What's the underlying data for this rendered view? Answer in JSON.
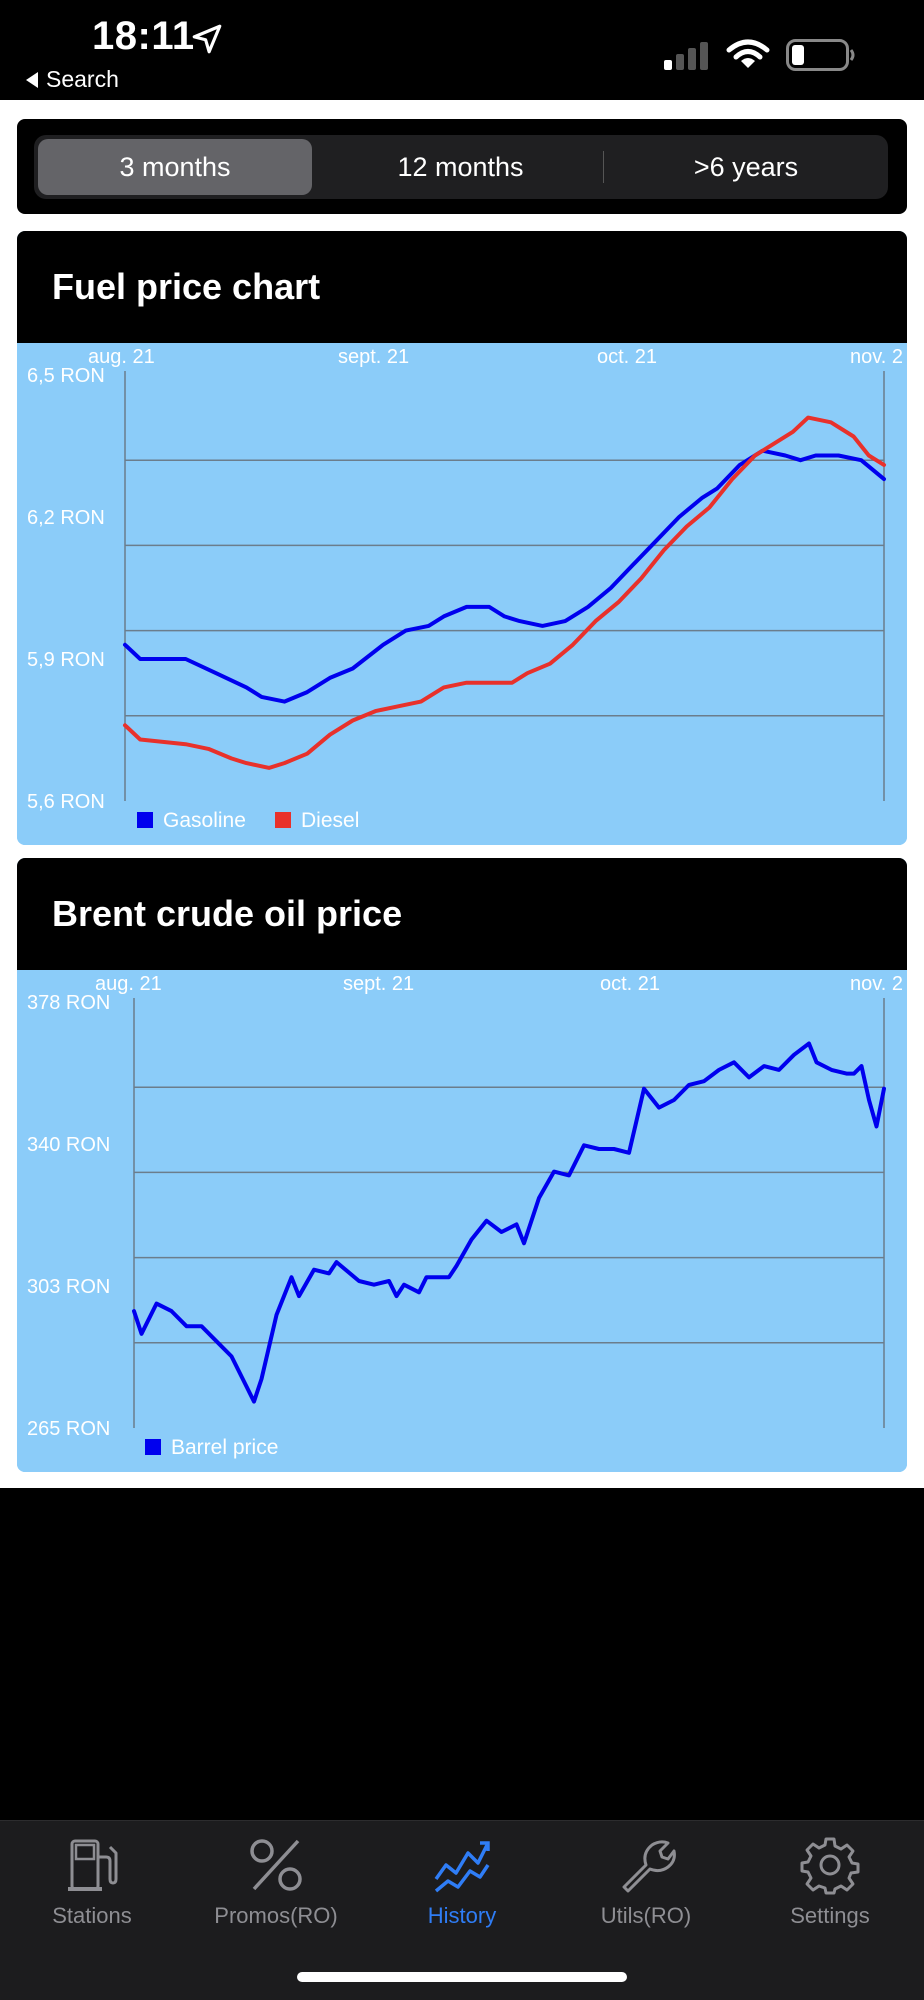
{
  "status": {
    "time": "18:11",
    "back_label": "Search"
  },
  "segments": [
    {
      "label": "3 months",
      "active": true
    },
    {
      "label": "12 months",
      "active": false
    },
    {
      "label": ">6 years",
      "active": false
    }
  ],
  "fuel": {
    "title": "Fuel price chart",
    "chart_data": {
      "type": "line",
      "title": "Fuel price chart",
      "x_ticks": [
        "aug. 21",
        "sept. 21",
        "oct. 21",
        "nov. 2"
      ],
      "y_ticks": [
        "6,5 RON",
        "6,2 RON",
        "5,9 RON",
        "5,6 RON"
      ],
      "ylim": [
        5.6,
        6.5
      ],
      "grid": true,
      "legend": "bottom-left",
      "series": [
        {
          "name": "Gasoline",
          "color": "#0000ee",
          "points": [
            [
              0,
              5.93
            ],
            [
              0.02,
              5.9
            ],
            [
              0.08,
              5.9
            ],
            [
              0.12,
              5.87
            ],
            [
              0.16,
              5.84
            ],
            [
              0.18,
              5.82
            ],
            [
              0.21,
              5.81
            ],
            [
              0.24,
              5.83
            ],
            [
              0.27,
              5.86
            ],
            [
              0.3,
              5.88
            ],
            [
              0.34,
              5.93
            ],
            [
              0.37,
              5.96
            ],
            [
              0.4,
              5.97
            ],
            [
              0.42,
              5.99
            ],
            [
              0.45,
              6.01
            ],
            [
              0.48,
              6.01
            ],
            [
              0.5,
              5.99
            ],
            [
              0.52,
              5.98
            ],
            [
              0.55,
              5.97
            ],
            [
              0.58,
              5.98
            ],
            [
              0.61,
              6.01
            ],
            [
              0.64,
              6.05
            ],
            [
              0.67,
              6.1
            ],
            [
              0.7,
              6.15
            ],
            [
              0.73,
              6.2
            ],
            [
              0.76,
              6.24
            ],
            [
              0.78,
              6.26
            ],
            [
              0.81,
              6.31
            ],
            [
              0.84,
              6.34
            ],
            [
              0.87,
              6.33
            ],
            [
              0.89,
              6.32
            ],
            [
              0.91,
              6.33
            ],
            [
              0.94,
              6.33
            ],
            [
              0.97,
              6.32
            ],
            [
              1.0,
              6.28
            ]
          ]
        },
        {
          "name": "Diesel",
          "color": "#e8312b",
          "points": [
            [
              0,
              5.76
            ],
            [
              0.02,
              5.73
            ],
            [
              0.08,
              5.72
            ],
            [
              0.11,
              5.71
            ],
            [
              0.14,
              5.69
            ],
            [
              0.16,
              5.68
            ],
            [
              0.19,
              5.67
            ],
            [
              0.21,
              5.68
            ],
            [
              0.24,
              5.7
            ],
            [
              0.27,
              5.74
            ],
            [
              0.3,
              5.77
            ],
            [
              0.33,
              5.79
            ],
            [
              0.36,
              5.8
            ],
            [
              0.39,
              5.81
            ],
            [
              0.42,
              5.84
            ],
            [
              0.45,
              5.85
            ],
            [
              0.48,
              5.85
            ],
            [
              0.51,
              5.85
            ],
            [
              0.53,
              5.87
            ],
            [
              0.56,
              5.89
            ],
            [
              0.59,
              5.93
            ],
            [
              0.62,
              5.98
            ],
            [
              0.65,
              6.02
            ],
            [
              0.68,
              6.07
            ],
            [
              0.71,
              6.13
            ],
            [
              0.74,
              6.18
            ],
            [
              0.77,
              6.22
            ],
            [
              0.8,
              6.28
            ],
            [
              0.83,
              6.33
            ],
            [
              0.86,
              6.36
            ],
            [
              0.88,
              6.38
            ],
            [
              0.9,
              6.41
            ],
            [
              0.93,
              6.4
            ],
            [
              0.96,
              6.37
            ],
            [
              0.98,
              6.33
            ],
            [
              1.0,
              6.31
            ]
          ]
        }
      ]
    }
  },
  "brent": {
    "title": "Brent crude oil price",
    "chart_data": {
      "type": "line",
      "title": "Brent crude oil price",
      "x_ticks": [
        "aug. 21",
        "sept. 21",
        "oct. 21",
        "nov. 2"
      ],
      "y_ticks": [
        "378 RON",
        "340 RON",
        "303 RON",
        "265 RON"
      ],
      "ylim": [
        265,
        378
      ],
      "grid": true,
      "legend": "bottom-left",
      "series": [
        {
          "name": "Barrel price",
          "color": "#0000ee",
          "points": [
            [
              0,
              296
            ],
            [
              0.01,
              290
            ],
            [
              0.03,
              298
            ],
            [
              0.05,
              296
            ],
            [
              0.07,
              292
            ],
            [
              0.09,
              292
            ],
            [
              0.11,
              288
            ],
            [
              0.13,
              284
            ],
            [
              0.15,
              276
            ],
            [
              0.16,
              272
            ],
            [
              0.17,
              278
            ],
            [
              0.19,
              295
            ],
            [
              0.21,
              305
            ],
            [
              0.22,
              300
            ],
            [
              0.24,
              307
            ],
            [
              0.26,
              306
            ],
            [
              0.27,
              309
            ],
            [
              0.3,
              304
            ],
            [
              0.32,
              303
            ],
            [
              0.34,
              304
            ],
            [
              0.35,
              300
            ],
            [
              0.36,
              303
            ],
            [
              0.38,
              301
            ],
            [
              0.39,
              305
            ],
            [
              0.4,
              305
            ],
            [
              0.42,
              305
            ],
            [
              0.43,
              308
            ],
            [
              0.45,
              315
            ],
            [
              0.47,
              320
            ],
            [
              0.49,
              317
            ],
            [
              0.51,
              319
            ],
            [
              0.52,
              314
            ],
            [
              0.54,
              326
            ],
            [
              0.56,
              333
            ],
            [
              0.58,
              332
            ],
            [
              0.6,
              340
            ],
            [
              0.62,
              339
            ],
            [
              0.64,
              339
            ],
            [
              0.66,
              338
            ],
            [
              0.68,
              355
            ],
            [
              0.7,
              350
            ],
            [
              0.72,
              352
            ],
            [
              0.74,
              356
            ],
            [
              0.76,
              357
            ],
            [
              0.78,
              360
            ],
            [
              0.8,
              362
            ],
            [
              0.82,
              358
            ],
            [
              0.84,
              361
            ],
            [
              0.86,
              360
            ],
            [
              0.88,
              364
            ],
            [
              0.9,
              367
            ],
            [
              0.91,
              362
            ],
            [
              0.93,
              360
            ],
            [
              0.95,
              359
            ],
            [
              0.96,
              359
            ],
            [
              0.97,
              361
            ],
            [
              0.98,
              352
            ],
            [
              0.99,
              345
            ],
            [
              1.0,
              355
            ]
          ]
        }
      ]
    }
  },
  "tabs": [
    {
      "label": "Stations",
      "icon": "fuel-pump-icon",
      "active": false
    },
    {
      "label": "Promos(RO)",
      "icon": "percent-icon",
      "active": false
    },
    {
      "label": "History",
      "icon": "trend-chart-icon",
      "active": true
    },
    {
      "label": "Utils(RO)",
      "icon": "wrench-icon",
      "active": false
    },
    {
      "label": "Settings",
      "icon": "gear-icon",
      "active": false
    }
  ],
  "colors": {
    "chart_bg": "#8bccf9",
    "accent": "#2f7df6"
  }
}
